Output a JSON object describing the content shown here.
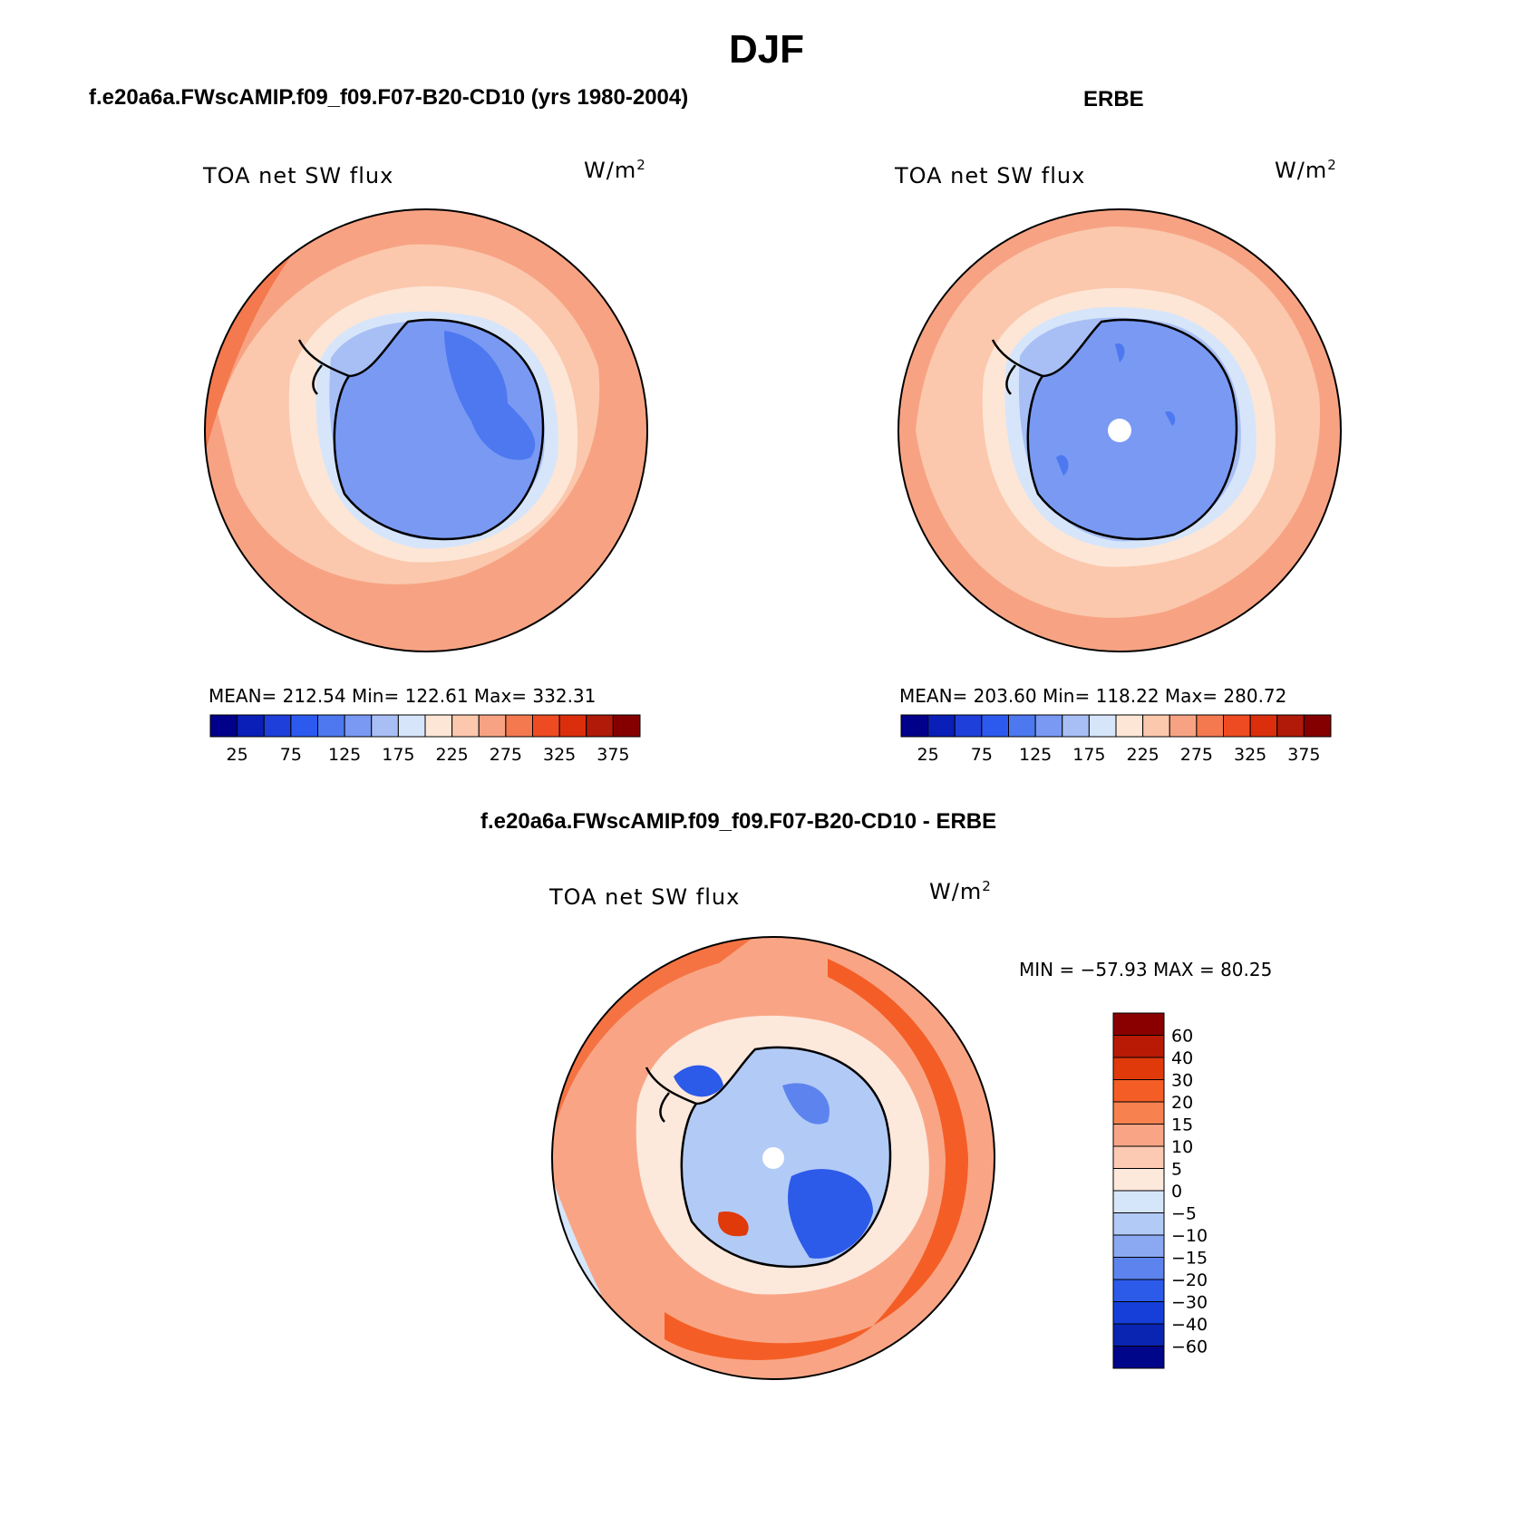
{
  "figure": {
    "title": "DJF",
    "panel_a_title": "f.e20a6a.FWscAMIP.f09_f09.F07-B20-CD10 (yrs 1980-2004)",
    "panel_b_title": "ERBE",
    "panel_c_title": "f.e20a6a.FWscAMIP.f09_f09.F07-B20-CD10 - ERBE"
  },
  "panels": {
    "a": {
      "variable": "TOA net SW flux",
      "units": "W/m",
      "units_exp": "2",
      "stats_text": "MEAN= 212.54   Min= 122.61   Max= 332.31",
      "mean": 212.54,
      "min": 122.61,
      "max": 332.31
    },
    "b": {
      "variable": "TOA net SW flux",
      "units": "W/m",
      "units_exp": "2",
      "stats_text": "MEAN= 203.60   Min= 118.22   Max= 280.72",
      "mean": 203.6,
      "min": 118.22,
      "max": 280.72
    },
    "c": {
      "variable": "TOA net SW flux",
      "units": "W/m",
      "units_exp": "2",
      "stats_text": "MIN = −57.93 MAX =   80.25",
      "min": -57.93,
      "max": 80.25
    }
  },
  "colorbars": {
    "absolute": {
      "colors": [
        "#00008a",
        "#0a1fb8",
        "#1f3fdb",
        "#2c5aee",
        "#4d78f0",
        "#7999f3",
        "#a8bff5",
        "#d6e5fa",
        "#fde6d6",
        "#fbc8ad",
        "#f7a383",
        "#f4794f",
        "#ef4b22",
        "#db2e0d",
        "#b11a08",
        "#840000"
      ],
      "tick_labels": [
        "25",
        "75",
        "125",
        "175",
        "225",
        "275",
        "325",
        "375"
      ]
    },
    "difference": {
      "colors": [
        "#8a0000",
        "#b81a05",
        "#e03a0a",
        "#f45e26",
        "#f7814f",
        "#f9a585",
        "#fccab2",
        "#fde8dc",
        "#d6e6fa",
        "#b2caf6",
        "#8aa9f2",
        "#5d84ee",
        "#2c5ae9",
        "#153fd8",
        "#0a25b2",
        "#00068a"
      ],
      "tick_labels": [
        "60",
        "40",
        "30",
        "20",
        "15",
        "10",
        "5",
        "0",
        "−5",
        "−10",
        "−15",
        "−20",
        "−30",
        "−40",
        "−60"
      ]
    }
  },
  "map_colors": {
    "ocean_warm": "#f7a383",
    "ocean_light": "#fbc8ad",
    "ocean_pale": "#fde6d6",
    "ice_light": "#a8bff5",
    "ice_mid": "#7999f3",
    "ice_deep": "#4d78f0",
    "diff_red": "#ef4b22",
    "diff_orange": "#f7814f",
    "diff_blue": "#2c5ae9",
    "diff_lightblue": "#b2caf6"
  }
}
